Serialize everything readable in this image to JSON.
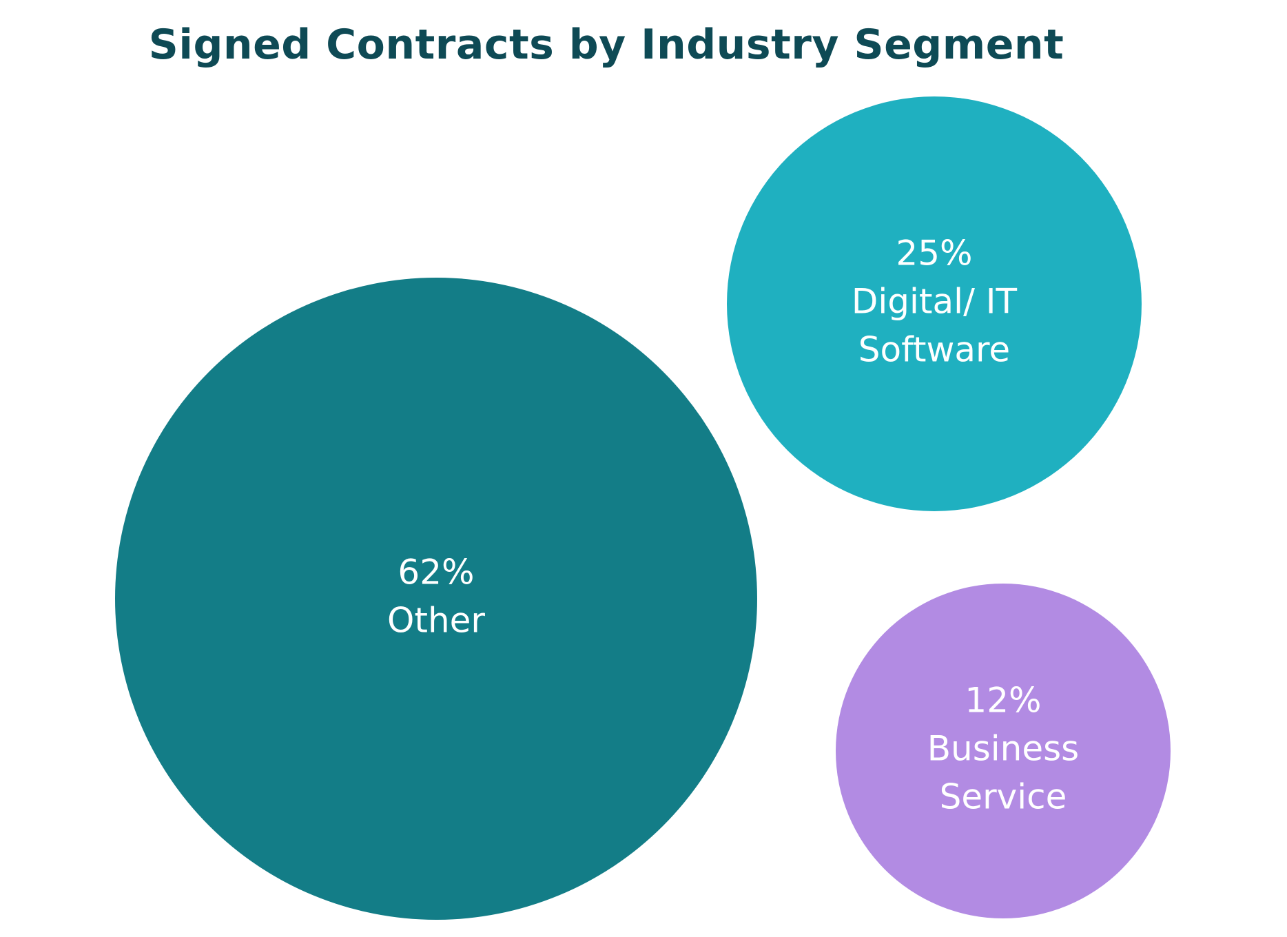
{
  "chart_data": {
    "type": "bubble",
    "title": "Signed Contracts by Industry Segment",
    "series": [
      {
        "label_lines": [
          "62%",
          "Other"
        ],
        "value": 62,
        "color": "#137d87"
      },
      {
        "label_lines": [
          "25%",
          "Digital/ IT",
          "Software"
        ],
        "value": 25,
        "color": "#1fb0c0"
      },
      {
        "label_lines": [
          "12%",
          "Business",
          "Service"
        ],
        "value": 12,
        "color": "#b28be3"
      }
    ]
  }
}
